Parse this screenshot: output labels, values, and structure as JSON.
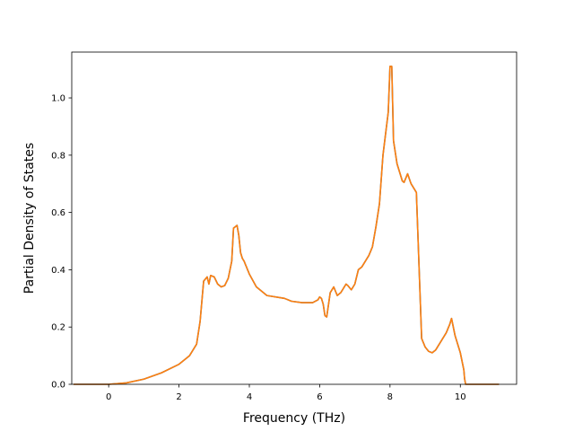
{
  "chart_data": {
    "type": "line",
    "title": "",
    "xlabel": "Frequency (THz)",
    "ylabel": "Partial Density of States",
    "xlim": [
      -1.05,
      11.6
    ],
    "ylim": [
      0.0,
      1.16
    ],
    "xticks": [
      0,
      2,
      4,
      6,
      8,
      10
    ],
    "yticks": [
      0.0,
      0.2,
      0.4,
      0.6,
      0.8,
      1.0
    ],
    "xtick_labels": [
      "0",
      "2",
      "4",
      "6",
      "8",
      "10"
    ],
    "ytick_labels": [
      "0.0",
      "0.2",
      "0.4",
      "0.6",
      "0.8",
      "1.0"
    ],
    "grid": false,
    "legend": false,
    "series": [
      {
        "color": "#1f77b4",
        "x": [
          -1.0,
          0.0,
          0.5,
          1.0,
          1.5,
          2.0,
          2.3,
          2.5,
          2.6,
          2.7,
          2.8,
          2.85,
          2.9,
          3.0,
          3.1,
          3.2,
          3.3,
          3.4,
          3.5,
          3.55,
          3.65,
          3.7,
          3.75,
          3.8,
          3.85,
          4.0,
          4.2,
          4.5,
          5.0,
          5.2,
          5.5,
          5.8,
          5.95,
          6.0,
          6.05,
          6.1,
          6.15,
          6.2,
          6.3,
          6.4,
          6.5,
          6.6,
          6.7,
          6.75,
          6.8,
          6.9,
          7.0,
          7.1,
          7.2,
          7.3,
          7.4,
          7.5,
          7.6,
          7.7,
          7.8,
          7.85,
          7.9,
          7.95,
          8.0,
          8.05,
          8.1,
          8.2,
          8.3,
          8.35,
          8.4,
          8.45,
          8.5,
          8.6,
          8.7,
          8.75,
          8.8,
          8.9,
          9.0,
          9.1,
          9.2,
          9.3,
          9.4,
          9.5,
          9.6,
          9.7,
          9.75,
          9.8,
          9.85,
          9.9,
          10.0,
          10.1,
          10.12,
          10.15,
          10.2,
          10.5,
          11.1
        ],
        "y": [
          0.0,
          0.0,
          0.005,
          0.018,
          0.04,
          0.07,
          0.1,
          0.14,
          0.22,
          0.36,
          0.375,
          0.35,
          0.38,
          0.375,
          0.35,
          0.34,
          0.345,
          0.37,
          0.43,
          0.545,
          0.555,
          0.52,
          0.46,
          0.44,
          0.43,
          0.385,
          0.34,
          0.31,
          0.3,
          0.29,
          0.285,
          0.285,
          0.295,
          0.305,
          0.3,
          0.28,
          0.24,
          0.235,
          0.32,
          0.34,
          0.31,
          0.32,
          0.34,
          0.35,
          0.345,
          0.33,
          0.35,
          0.4,
          0.41,
          0.43,
          0.45,
          0.48,
          0.55,
          0.63,
          0.8,
          0.85,
          0.9,
          0.95,
          1.11,
          1.11,
          0.85,
          0.77,
          0.73,
          0.71,
          0.705,
          0.72,
          0.735,
          0.7,
          0.68,
          0.67,
          0.5,
          0.16,
          0.13,
          0.115,
          0.11,
          0.12,
          0.14,
          0.16,
          0.18,
          0.21,
          0.23,
          0.2,
          0.17,
          0.15,
          0.11,
          0.05,
          0.02,
          0.0,
          0.0,
          0.0,
          0.0
        ]
      },
      {
        "color": "#ff7f0e",
        "x": [
          -1.0,
          0.0,
          0.5,
          1.0,
          1.5,
          2.0,
          2.3,
          2.5,
          2.6,
          2.7,
          2.8,
          2.85,
          2.9,
          3.0,
          3.1,
          3.2,
          3.3,
          3.4,
          3.5,
          3.55,
          3.65,
          3.7,
          3.75,
          3.8,
          3.85,
          4.0,
          4.2,
          4.5,
          5.0,
          5.2,
          5.5,
          5.8,
          5.95,
          6.0,
          6.05,
          6.1,
          6.15,
          6.2,
          6.3,
          6.4,
          6.5,
          6.6,
          6.7,
          6.75,
          6.8,
          6.9,
          7.0,
          7.1,
          7.2,
          7.3,
          7.4,
          7.5,
          7.6,
          7.7,
          7.8,
          7.85,
          7.9,
          7.95,
          8.0,
          8.05,
          8.1,
          8.2,
          8.3,
          8.35,
          8.4,
          8.45,
          8.5,
          8.6,
          8.7,
          8.75,
          8.8,
          8.9,
          9.0,
          9.1,
          9.2,
          9.3,
          9.4,
          9.5,
          9.6,
          9.7,
          9.75,
          9.8,
          9.85,
          9.9,
          10.0,
          10.1,
          10.12,
          10.15,
          10.2,
          10.5,
          11.1
        ],
        "y": [
          0.0,
          0.0,
          0.005,
          0.018,
          0.04,
          0.07,
          0.1,
          0.14,
          0.22,
          0.36,
          0.375,
          0.35,
          0.38,
          0.375,
          0.35,
          0.34,
          0.345,
          0.37,
          0.43,
          0.545,
          0.555,
          0.52,
          0.46,
          0.44,
          0.43,
          0.385,
          0.34,
          0.31,
          0.3,
          0.29,
          0.285,
          0.285,
          0.295,
          0.305,
          0.3,
          0.28,
          0.24,
          0.235,
          0.32,
          0.34,
          0.31,
          0.32,
          0.34,
          0.35,
          0.345,
          0.33,
          0.35,
          0.4,
          0.41,
          0.43,
          0.45,
          0.48,
          0.55,
          0.63,
          0.8,
          0.85,
          0.9,
          0.95,
          1.11,
          1.11,
          0.85,
          0.77,
          0.73,
          0.71,
          0.705,
          0.72,
          0.735,
          0.7,
          0.68,
          0.67,
          0.5,
          0.16,
          0.13,
          0.115,
          0.11,
          0.12,
          0.14,
          0.16,
          0.18,
          0.21,
          0.23,
          0.2,
          0.17,
          0.15,
          0.11,
          0.05,
          0.02,
          0.0,
          0.0,
          0.0,
          0.0
        ]
      }
    ]
  }
}
